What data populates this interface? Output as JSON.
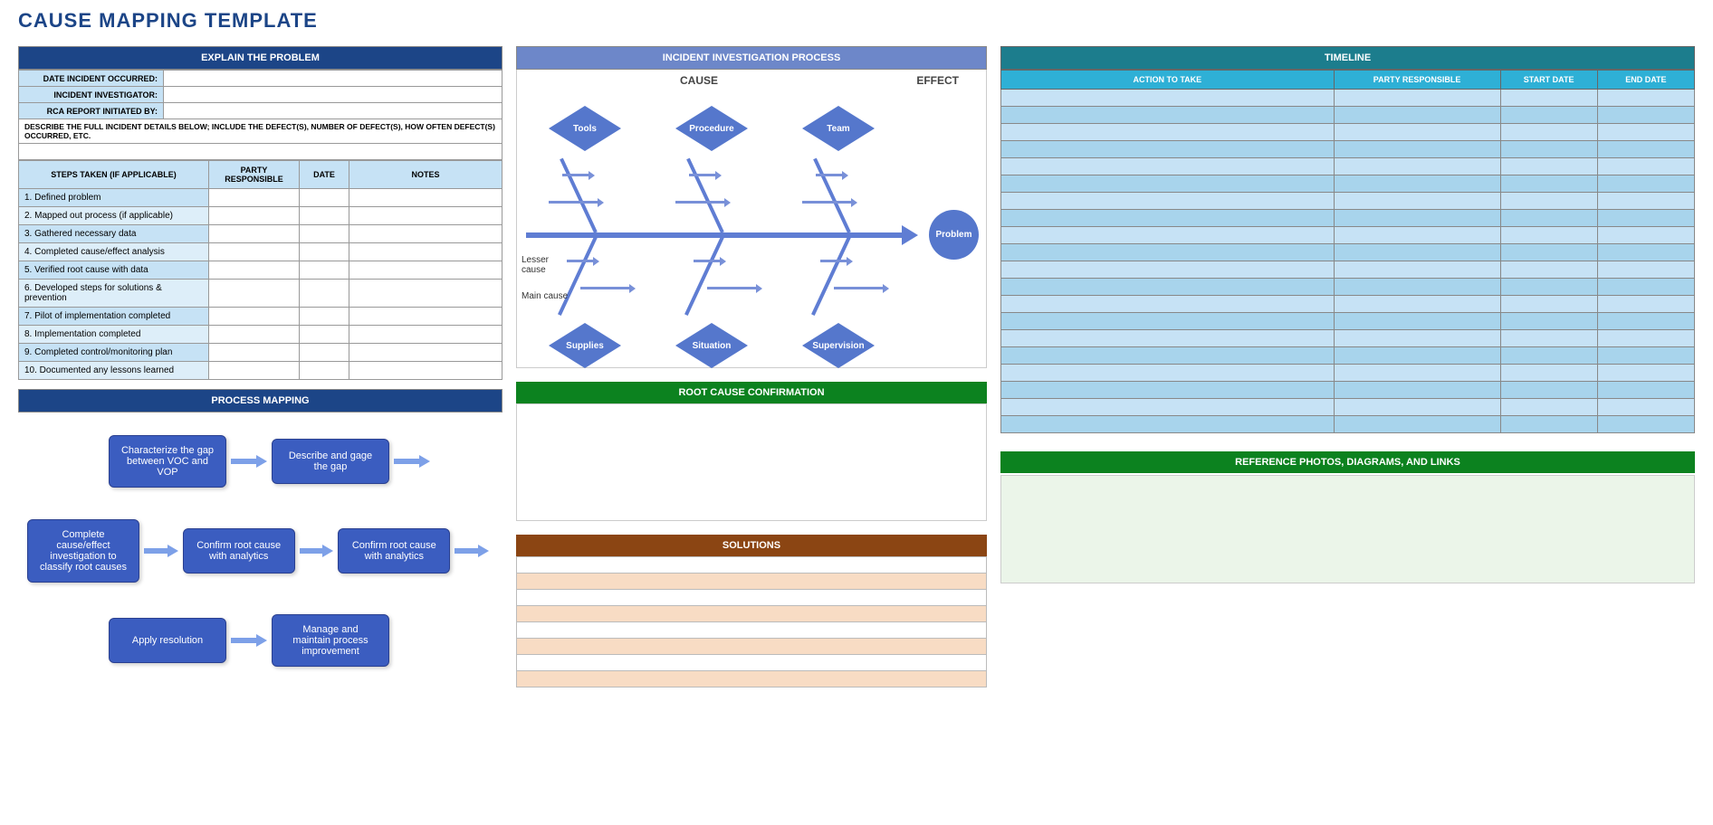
{
  "pageTitle": "CAUSE MAPPING TEMPLATE",
  "explain": {
    "header": "EXPLAIN THE PROBLEM",
    "fields": [
      "DATE INCIDENT OCCURRED:",
      "INCIDENT INVESTIGATOR:",
      "RCA REPORT INITIATED BY:"
    ],
    "describe": "DESCRIBE THE FULL INCIDENT DETAILS BELOW; INCLUDE THE DEFECT(S), NUMBER OF DEFECT(S), HOW OFTEN DEFECT(S) OCCURRED, ETC.",
    "stepsHeaders": [
      "STEPS TAKEN (IF APPLICABLE)",
      "PARTY RESPONSIBLE",
      "DATE",
      "NOTES"
    ],
    "steps": [
      "1. Defined problem",
      "2. Mapped out process (if applicable)",
      "3. Gathered necessary data",
      "4. Completed cause/effect analysis",
      "5. Verified root cause with data",
      "6. Developed steps for solutions & prevention",
      "7. Pilot of implementation completed",
      "8. Implementation completed",
      "9. Completed control/monitoring plan",
      "10. Documented any lessons learned"
    ]
  },
  "processMapping": {
    "header": "PROCESS MAPPING",
    "boxes": [
      "Characterize the gap between VOC and VOP",
      "Describe and gage the gap",
      "Complete cause/effect investigation to classify root causes",
      "Confirm root cause with analytics",
      "Confirm root cause with analytics",
      "Apply resolution",
      "Manage and maintain process improvement"
    ]
  },
  "incident": {
    "header": "INCIDENT INVESTIGATION PROCESS",
    "causeLabel": "CAUSE",
    "effectLabel": "EFFECT",
    "topNodes": [
      "Tools",
      "Procedure",
      "Team"
    ],
    "bottomNodes": [
      "Supplies",
      "Situation",
      "Supervision"
    ],
    "problem": "Problem",
    "lesser": "Lesser cause",
    "main": "Main cause"
  },
  "rootCause": {
    "header": "ROOT CAUSE CONFIRMATION"
  },
  "solutions": {
    "header": "SOLUTIONS",
    "rowCount": 8
  },
  "timeline": {
    "header": "TIMELINE",
    "cols": [
      "ACTION TO TAKE",
      "PARTY RESPONSIBLE",
      "START DATE",
      "END DATE"
    ],
    "rowCount": 20
  },
  "reference": {
    "header": "REFERENCE PHOTOS, DIAGRAMS, AND LINKS"
  },
  "colors": {
    "navy": "#1c4587",
    "lightNavy": "#6d87c9",
    "teal": "#1c7d8d",
    "cyan": "#2eb0d6",
    "green": "#0c821f",
    "brown": "#8b4513",
    "lightBlue1": "#c6e2f5",
    "lightBlue2": "#ddeef9",
    "timelineAlt": "#a8d4ec",
    "procBox": "#3b5dc0",
    "fishNode": "#5577cc",
    "solAlt": "#f8dcc4",
    "refBg": "#ebf5e9"
  }
}
